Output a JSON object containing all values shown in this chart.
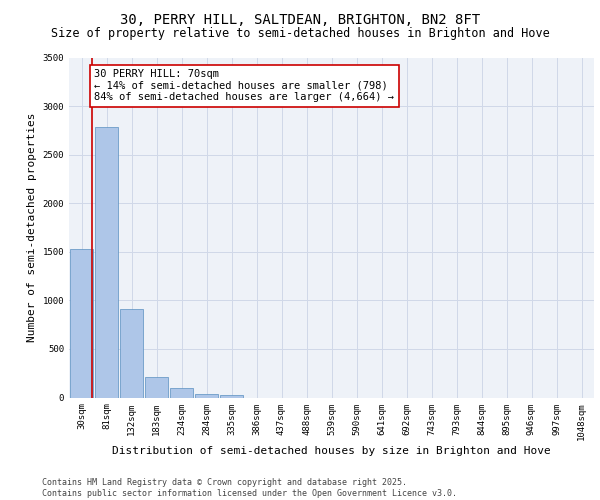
{
  "title1": "30, PERRY HILL, SALTDEAN, BRIGHTON, BN2 8FT",
  "title2": "Size of property relative to semi-detached houses in Brighton and Hove",
  "xlabel": "Distribution of semi-detached houses by size in Brighton and Hove",
  "ylabel": "Number of semi-detached properties",
  "bar_labels": [
    "30sqm",
    "81sqm",
    "132sqm",
    "183sqm",
    "234sqm",
    "284sqm",
    "335sqm",
    "386sqm",
    "437sqm",
    "488sqm",
    "539sqm",
    "590sqm",
    "641sqm",
    "692sqm",
    "743sqm",
    "793sqm",
    "844sqm",
    "895sqm",
    "946sqm",
    "997sqm",
    "1048sqm"
  ],
  "bar_values": [
    1530,
    2780,
    910,
    210,
    100,
    40,
    30,
    0,
    0,
    0,
    0,
    0,
    0,
    0,
    0,
    0,
    0,
    0,
    0,
    0,
    0
  ],
  "bar_color": "#aec6e8",
  "bar_edge_color": "#5a8fc0",
  "grid_color": "#d0d8e8",
  "bg_color": "#eef2f8",
  "annotation_box_color": "#cc0000",
  "property_line_color": "#cc0000",
  "annotation_text": "30 PERRY HILL: 70sqm\n← 14% of semi-detached houses are smaller (798)\n84% of semi-detached houses are larger (4,664) →",
  "ylim": [
    0,
    3500
  ],
  "yticks": [
    0,
    500,
    1000,
    1500,
    2000,
    2500,
    3000,
    3500
  ],
  "footnote": "Contains HM Land Registry data © Crown copyright and database right 2025.\nContains public sector information licensed under the Open Government Licence v3.0.",
  "title1_fontsize": 10,
  "title2_fontsize": 8.5,
  "annotation_fontsize": 7.5,
  "ylabel_fontsize": 8,
  "xlabel_fontsize": 8,
  "tick_fontsize": 6.5,
  "footnote_fontsize": 6
}
